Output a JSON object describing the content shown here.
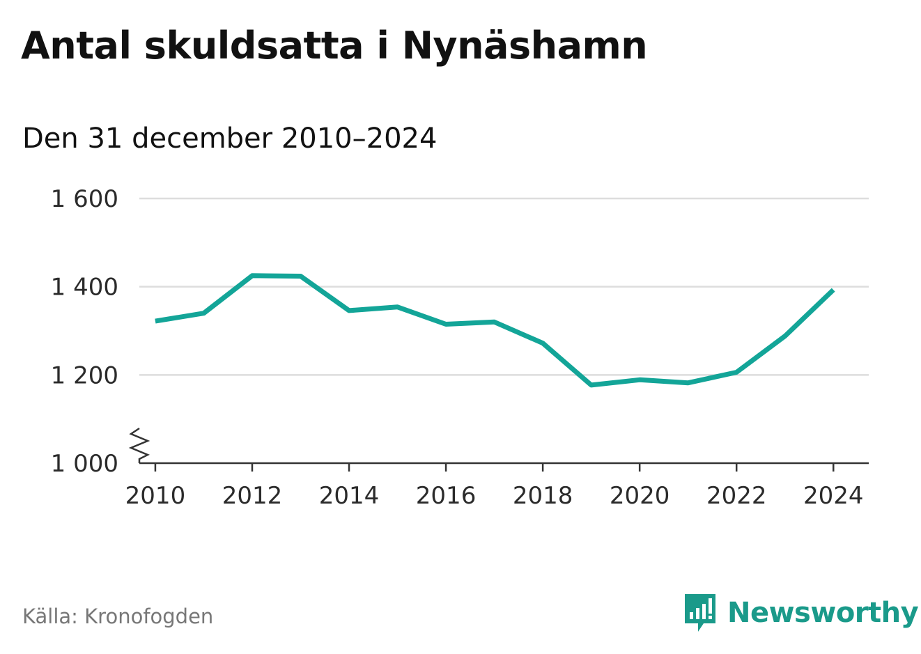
{
  "title": "Antal skuldsatta i Nynäshamn",
  "subtitle": "Den 31 december 2010–2024",
  "source": "Källa: Kronofogden",
  "brand": {
    "name": "Newsworthy",
    "icon": "newsworthy-logo-icon"
  },
  "colors": {
    "line": "#13a598",
    "grid": "#dddddd",
    "axis": "#333333",
    "brand": "#1a9a8a"
  },
  "chart_data": {
    "type": "line",
    "title": "Antal skuldsatta i Nynäshamn",
    "subtitle": "Den 31 december 2010–2024",
    "xlabel": "",
    "ylabel": "",
    "x": [
      2010,
      2011,
      2012,
      2013,
      2014,
      2015,
      2016,
      2017,
      2018,
      2019,
      2020,
      2021,
      2022,
      2023,
      2024
    ],
    "series": [
      {
        "values": [
          1322,
          1340,
          1425,
          1424,
          1346,
          1354,
          1315,
          1320,
          1272,
          1177,
          1189,
          1182,
          1206,
          1288,
          1393
        ]
      }
    ],
    "ylim": [
      1000,
      1600
    ],
    "yticks": [
      1000,
      1200,
      1400,
      1600
    ],
    "ytick_labels": [
      "1 000",
      "1 200",
      "1 400",
      "1 600"
    ],
    "xticks": [
      2010,
      2012,
      2014,
      2016,
      2018,
      2020,
      2022,
      2024
    ],
    "xtick_labels": [
      "2010",
      "2012",
      "2014",
      "2016",
      "2018",
      "2020",
      "2022",
      "2024"
    ],
    "xlim": [
      2009.67,
      2024.73
    ],
    "y_axis_break": true,
    "grid": true,
    "legend": "none"
  }
}
